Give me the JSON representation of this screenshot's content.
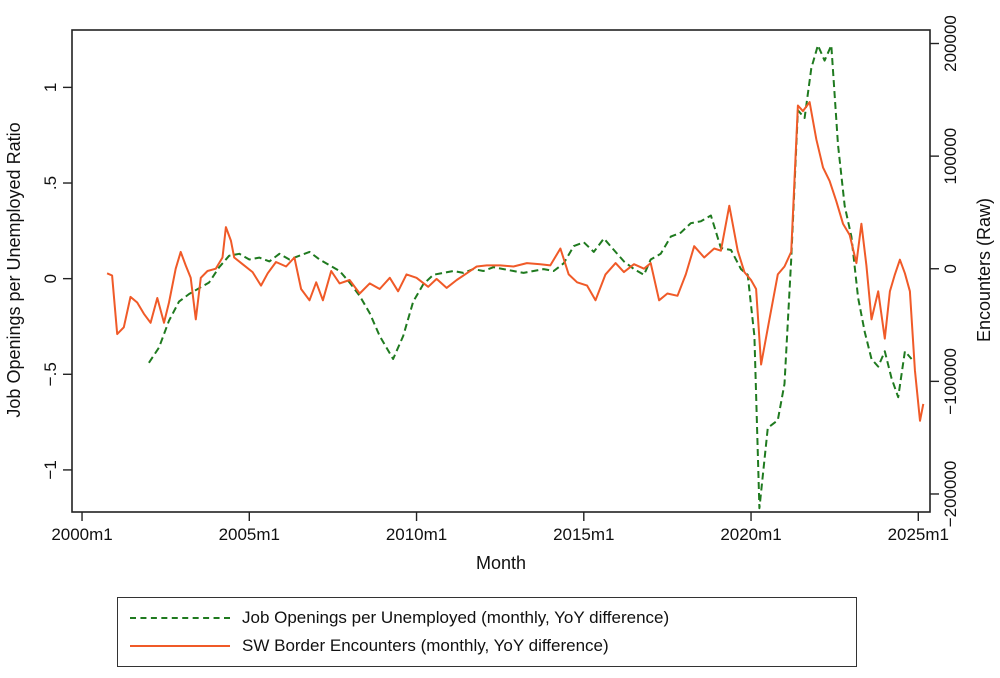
{
  "chart_data": {
    "type": "line",
    "title": "",
    "xlabel": "Month",
    "ylabel_left": "Job Openings per Unemployed Ratio",
    "ylabel_right": "Encounters (Raw)",
    "x_ticks": [
      "2000m1",
      "2005m1",
      "2010m1",
      "2015m1",
      "2020m1",
      "2025m1"
    ],
    "y_left_ticks": [
      "-1",
      "-.5",
      "0",
      ".5",
      "1"
    ],
    "y_right_ticks": [
      "-200000",
      "-100000",
      "0",
      "100000",
      "200000"
    ],
    "ylim_left": [
      -1.22,
      1.3
    ],
    "ylim_right": [
      -216000,
      212000
    ],
    "xlim": [
      1999.7,
      2025.35
    ],
    "grid": false,
    "legend_position": "bottom",
    "series": [
      {
        "name": "Job Openings per Unemployed (monthly, YoY difference)",
        "axis": "left",
        "style": "dashed",
        "color": "#1f7a1f",
        "points": [
          [
            2002.0,
            -0.44
          ],
          [
            2002.3,
            -0.36
          ],
          [
            2002.6,
            -0.22
          ],
          [
            2002.9,
            -0.12
          ],
          [
            2003.2,
            -0.08
          ],
          [
            2003.5,
            -0.05
          ],
          [
            2003.8,
            -0.02
          ],
          [
            2004.1,
            0.06
          ],
          [
            2004.4,
            0.12
          ],
          [
            2004.7,
            0.13
          ],
          [
            2005.0,
            0.1
          ],
          [
            2005.3,
            0.11
          ],
          [
            2005.6,
            0.09
          ],
          [
            2005.9,
            0.13
          ],
          [
            2006.2,
            0.1
          ],
          [
            2006.5,
            0.12
          ],
          [
            2006.8,
            0.14
          ],
          [
            2007.1,
            0.1
          ],
          [
            2007.4,
            0.07
          ],
          [
            2007.7,
            0.04
          ],
          [
            2008.0,
            -0.02
          ],
          [
            2008.3,
            -0.09
          ],
          [
            2008.6,
            -0.18
          ],
          [
            2008.9,
            -0.3
          ],
          [
            2009.1,
            -0.36
          ],
          [
            2009.3,
            -0.42
          ],
          [
            2009.6,
            -0.3
          ],
          [
            2009.9,
            -0.12
          ],
          [
            2010.2,
            -0.03
          ],
          [
            2010.5,
            0.02
          ],
          [
            2010.8,
            0.03
          ],
          [
            2011.1,
            0.04
          ],
          [
            2011.4,
            0.03
          ],
          [
            2011.7,
            0.05
          ],
          [
            2012.0,
            0.04
          ],
          [
            2012.3,
            0.06
          ],
          [
            2012.6,
            0.05
          ],
          [
            2012.9,
            0.04
          ],
          [
            2013.2,
            0.03
          ],
          [
            2013.5,
            0.04
          ],
          [
            2013.8,
            0.05
          ],
          [
            2014.1,
            0.04
          ],
          [
            2014.4,
            0.08
          ],
          [
            2014.7,
            0.17
          ],
          [
            2015.0,
            0.19
          ],
          [
            2015.3,
            0.14
          ],
          [
            2015.6,
            0.21
          ],
          [
            2015.9,
            0.15
          ],
          [
            2016.2,
            0.09
          ],
          [
            2016.5,
            0.05
          ],
          [
            2016.8,
            0.02
          ],
          [
            2017.0,
            0.1
          ],
          [
            2017.3,
            0.13
          ],
          [
            2017.6,
            0.22
          ],
          [
            2017.9,
            0.24
          ],
          [
            2018.2,
            0.29
          ],
          [
            2018.5,
            0.3
          ],
          [
            2018.8,
            0.33
          ],
          [
            2019.1,
            0.16
          ],
          [
            2019.4,
            0.15
          ],
          [
            2019.7,
            0.05
          ],
          [
            2019.9,
            0.02
          ],
          [
            2020.1,
            -0.3
          ],
          [
            2020.25,
            -1.2
          ],
          [
            2020.5,
            -0.78
          ],
          [
            2020.8,
            -0.74
          ],
          [
            2021.0,
            -0.55
          ],
          [
            2021.2,
            0.1
          ],
          [
            2021.4,
            0.88
          ],
          [
            2021.6,
            0.84
          ],
          [
            2021.8,
            1.1
          ],
          [
            2022.0,
            1.22
          ],
          [
            2022.2,
            1.14
          ],
          [
            2022.4,
            1.22
          ],
          [
            2022.6,
            0.7
          ],
          [
            2022.8,
            0.38
          ],
          [
            2023.0,
            0.22
          ],
          [
            2023.2,
            -0.1
          ],
          [
            2023.4,
            -0.28
          ],
          [
            2023.6,
            -0.42
          ],
          [
            2023.8,
            -0.46
          ],
          [
            2024.0,
            -0.38
          ],
          [
            2024.2,
            -0.52
          ],
          [
            2024.4,
            -0.62
          ],
          [
            2024.6,
            -0.38
          ],
          [
            2024.8,
            -0.42
          ]
        ]
      },
      {
        "name": "SW Border Encounters (monthly, YoY difference)",
        "axis": "right",
        "style": "solid",
        "color": "#f05a28",
        "points": [
          [
            2000.75,
            -4000
          ],
          [
            2000.9,
            -6000
          ],
          [
            2001.05,
            -58000
          ],
          [
            2001.25,
            -52000
          ],
          [
            2001.45,
            -25000
          ],
          [
            2001.65,
            -30000
          ],
          [
            2001.85,
            -40000
          ],
          [
            2002.05,
            -48000
          ],
          [
            2002.25,
            -26000
          ],
          [
            2002.45,
            -48000
          ],
          [
            2002.6,
            -30000
          ],
          [
            2002.8,
            0
          ],
          [
            2002.95,
            15000
          ],
          [
            2003.1,
            3000
          ],
          [
            2003.25,
            -8000
          ],
          [
            2003.4,
            -45000
          ],
          [
            2003.55,
            -8000
          ],
          [
            2003.75,
            -2000
          ],
          [
            2004.0,
            0
          ],
          [
            2004.2,
            10000
          ],
          [
            2004.3,
            37000
          ],
          [
            2004.45,
            25000
          ],
          [
            2004.55,
            10000
          ],
          [
            2004.8,
            4000
          ],
          [
            2005.1,
            -3000
          ],
          [
            2005.35,
            -15000
          ],
          [
            2005.55,
            -4000
          ],
          [
            2005.8,
            6000
          ],
          [
            2006.1,
            2000
          ],
          [
            2006.35,
            10000
          ],
          [
            2006.55,
            -18000
          ],
          [
            2006.8,
            -28000
          ],
          [
            2007.0,
            -12000
          ],
          [
            2007.2,
            -28000
          ],
          [
            2007.45,
            -2000
          ],
          [
            2007.7,
            -13000
          ],
          [
            2008.0,
            -10000
          ],
          [
            2008.3,
            -22000
          ],
          [
            2008.6,
            -13000
          ],
          [
            2008.9,
            -18000
          ],
          [
            2009.2,
            -8000
          ],
          [
            2009.45,
            -20000
          ],
          [
            2009.7,
            -5000
          ],
          [
            2010.0,
            -8000
          ],
          [
            2010.35,
            -16000
          ],
          [
            2010.6,
            -9000
          ],
          [
            2010.9,
            -17000
          ],
          [
            2011.2,
            -10000
          ],
          [
            2011.5,
            -4000
          ],
          [
            2011.8,
            2000
          ],
          [
            2012.1,
            3000
          ],
          [
            2012.5,
            3000
          ],
          [
            2012.9,
            2000
          ],
          [
            2013.3,
            5000
          ],
          [
            2013.7,
            4000
          ],
          [
            2014.0,
            3000
          ],
          [
            2014.3,
            18000
          ],
          [
            2014.55,
            -5000
          ],
          [
            2014.8,
            -12000
          ],
          [
            2015.1,
            -15000
          ],
          [
            2015.35,
            -28000
          ],
          [
            2015.65,
            -5000
          ],
          [
            2015.95,
            5000
          ],
          [
            2016.2,
            -3000
          ],
          [
            2016.5,
            4000
          ],
          [
            2016.8,
            0
          ],
          [
            2017.0,
            5000
          ],
          [
            2017.25,
            -28000
          ],
          [
            2017.5,
            -22000
          ],
          [
            2017.8,
            -24000
          ],
          [
            2018.05,
            -5000
          ],
          [
            2018.3,
            20000
          ],
          [
            2018.6,
            10000
          ],
          [
            2018.9,
            18000
          ],
          [
            2019.1,
            16000
          ],
          [
            2019.35,
            56000
          ],
          [
            2019.6,
            16000
          ],
          [
            2019.8,
            -3000
          ],
          [
            2020.0,
            -10000
          ],
          [
            2020.15,
            -18000
          ],
          [
            2020.3,
            -85000
          ],
          [
            2020.55,
            -45000
          ],
          [
            2020.8,
            -5000
          ],
          [
            2021.0,
            2000
          ],
          [
            2021.2,
            15000
          ],
          [
            2021.4,
            145000
          ],
          [
            2021.55,
            140000
          ],
          [
            2021.75,
            148000
          ],
          [
            2021.95,
            115000
          ],
          [
            2022.15,
            90000
          ],
          [
            2022.35,
            78000
          ],
          [
            2022.55,
            60000
          ],
          [
            2022.75,
            40000
          ],
          [
            2022.95,
            30000
          ],
          [
            2023.15,
            5000
          ],
          [
            2023.3,
            40000
          ],
          [
            2023.45,
            3000
          ],
          [
            2023.6,
            -45000
          ],
          [
            2023.8,
            -20000
          ],
          [
            2024.0,
            -62000
          ],
          [
            2024.15,
            -20000
          ],
          [
            2024.3,
            -5000
          ],
          [
            2024.45,
            8000
          ],
          [
            2024.6,
            -4000
          ],
          [
            2024.75,
            -20000
          ],
          [
            2024.9,
            -90000
          ],
          [
            2025.05,
            -135000
          ],
          [
            2025.15,
            -120000
          ]
        ]
      }
    ]
  },
  "axes": {
    "x_title": "Month",
    "y_left_title": "Job Openings per Unemployed Ratio",
    "y_right_title": "Encounters (Raw)"
  },
  "legend": {
    "items": [
      {
        "label": "Job Openings per Unemployed (monthly, YoY difference)",
        "style": "dashed",
        "color": "#1f7a1f"
      },
      {
        "label": "SW Border Encounters (monthly, YoY difference)",
        "style": "solid",
        "color": "#f05a28"
      }
    ]
  }
}
